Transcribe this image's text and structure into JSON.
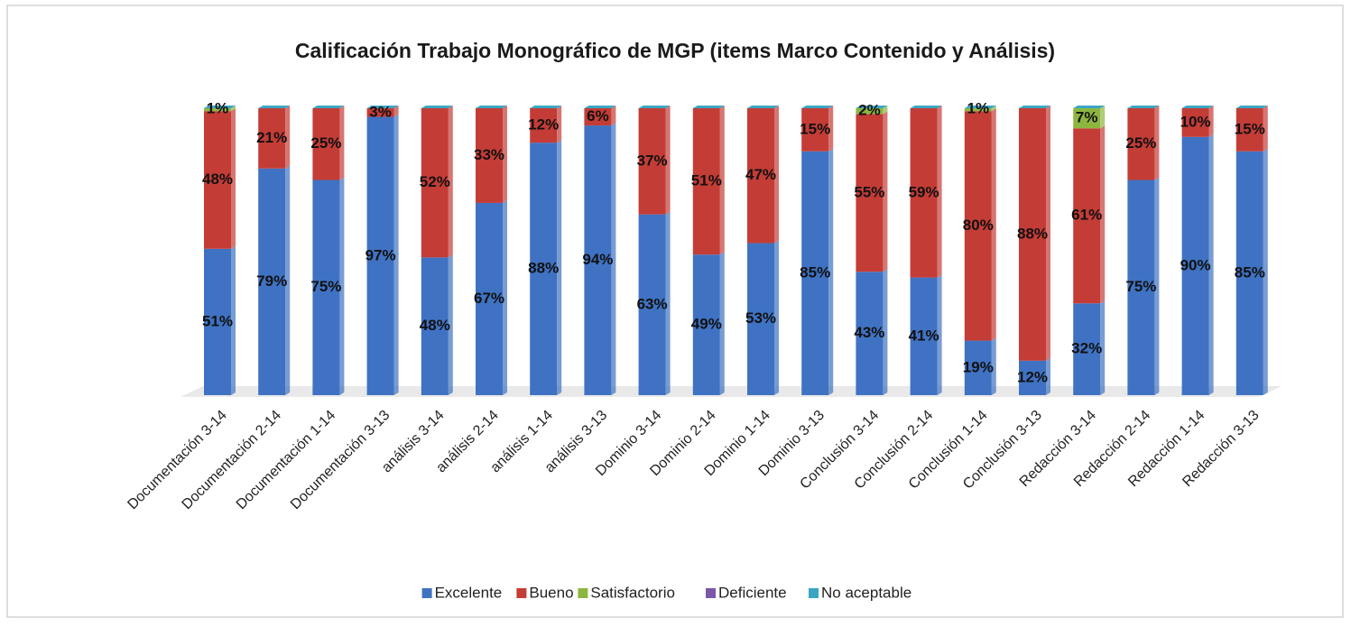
{
  "chart_data": {
    "type": "stacked_bar",
    "title": "Calificación  Trabajo Monográfico de MGP (items Marco Contenido y Análisis)",
    "categories": [
      "Documentación 3-14",
      "Documentación 2-14",
      "Documentación 1-14",
      "Documentación 3-13",
      "análisis 3-14",
      "análisis 2-14",
      "análisis 1-14",
      "análisis 3-13",
      "Dominio 3-14",
      "Dominio 2-14",
      "Dominio 1-14",
      "Dominio 3-13",
      "Conclusión 3-14",
      "Conclusión 2-14",
      "Conclusión 1-14",
      "Conclusión 3-13",
      "Redacción 3-14",
      "Redacción 2-14",
      "Redacción 1-14",
      "Redacción 3-13"
    ],
    "ylim": [
      0,
      100
    ],
    "legend": "bottom",
    "series": [
      {
        "name": "Excelente",
        "color": "#3f72c2",
        "values": [
          51,
          79,
          75,
          97,
          48,
          67,
          88,
          94,
          63,
          49,
          53,
          85,
          43,
          41,
          19,
          12,
          32,
          75,
          90,
          85
        ],
        "value_labels": [
          "51%",
          "79%",
          "75%",
          "97%",
          "48%",
          "67%",
          "88%",
          "94%",
          "63%",
          "49%",
          "53%",
          "85%",
          "43%",
          "41%",
          "19%",
          "12%",
          "32%",
          "75%",
          "90%",
          "85%"
        ]
      },
      {
        "name": "Bueno",
        "color": "#c43c36",
        "values": [
          48,
          21,
          25,
          3,
          52,
          33,
          12,
          6,
          37,
          51,
          47,
          15,
          55,
          59,
          80,
          88,
          61,
          25,
          10,
          15
        ],
        "value_labels": [
          "48%",
          "21%",
          "25%",
          "3%",
          "52%",
          "33%",
          "12%",
          "6%",
          "37%",
          "51%",
          "47%",
          "15%",
          "55%",
          "59%",
          "80%",
          "88%",
          "61%",
          "25%",
          "10%",
          "15%"
        ]
      },
      {
        "name": "Satisfactorio",
        "color": "#8db63f",
        "values": [
          1,
          0,
          0,
          0,
          0,
          0,
          0,
          0,
          0,
          0,
          0,
          0,
          2,
          0,
          1,
          0,
          7,
          0,
          0,
          0
        ],
        "value_labels": [
          "1%",
          null,
          null,
          null,
          null,
          null,
          null,
          null,
          null,
          null,
          null,
          null,
          "2%",
          null,
          "1%",
          null,
          "7%",
          null,
          null,
          null
        ]
      },
      {
        "name": "Deficiente",
        "color": "#7b57a8",
        "values": [
          0,
          0,
          0,
          0,
          0,
          0,
          0,
          0,
          0,
          0,
          0,
          0,
          0,
          0,
          0,
          0,
          0,
          0,
          0,
          0
        ]
      },
      {
        "name": "No aceptable",
        "color": "#3ba6c4",
        "values": [
          0,
          0,
          0,
          0,
          0,
          0,
          0,
          0,
          0,
          0,
          0,
          0,
          0,
          0,
          0,
          0,
          0,
          0,
          0,
          0
        ]
      }
    ]
  }
}
